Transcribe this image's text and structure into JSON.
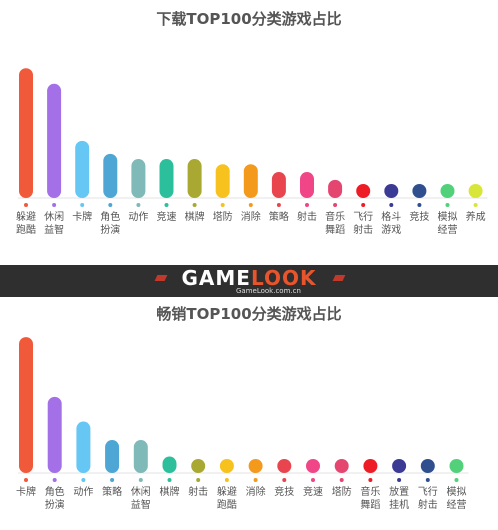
{
  "chart_data": [
    {
      "type": "bar",
      "title": "下载TOP100分类游戏占比",
      "categories": [
        [
          "躲避",
          "跑酷"
        ],
        [
          "休闲",
          "益智"
        ],
        [
          "卡牌"
        ],
        [
          "角色",
          "扮演"
        ],
        [
          "动作"
        ],
        [
          "竞速"
        ],
        [
          "棋牌"
        ],
        [
          "塔防"
        ],
        [
          "消除"
        ],
        [
          "策略"
        ],
        [
          "射击"
        ],
        [
          "音乐",
          "舞蹈"
        ],
        [
          "飞行",
          "射击"
        ],
        [
          "格斗",
          "游戏"
        ],
        [
          "竞技"
        ],
        [
          "模拟",
          "经营"
        ],
        [
          "养成"
        ]
      ],
      "values": [
        25,
        22,
        11,
        8.5,
        7.5,
        7.5,
        7.5,
        6.5,
        6.5,
        5,
        5,
        3.5,
        2.5,
        2.5,
        2.5,
        2.5,
        1
      ],
      "colors": [
        "#f05a3a",
        "#a370e8",
        "#66c7f4",
        "#4ea6d4",
        "#7fb9b8",
        "#2bbf9c",
        "#a8a832",
        "#f7c21e",
        "#f39a1c",
        "#e8454e",
        "#f04687",
        "#e4466f",
        "#ee1c25",
        "#3b3a94",
        "#2f4f8f",
        "#52d07a",
        "#d8e63a"
      ],
      "ylim": [
        0,
        26
      ]
    },
    {
      "type": "bar",
      "title": "畅销TOP100分类游戏占比",
      "categories": [
        [
          "卡牌"
        ],
        [
          "角色",
          "扮演"
        ],
        [
          "动作"
        ],
        [
          "策略"
        ],
        [
          "休闲",
          "益智"
        ],
        [
          "棋牌"
        ],
        [
          "射击"
        ],
        [
          "躲避",
          "跑酷"
        ],
        [
          "消除"
        ],
        [
          "竞技"
        ],
        [
          "竞速"
        ],
        [
          "塔防"
        ],
        [
          "音乐",
          "舞蹈"
        ],
        [
          "放置",
          "挂机"
        ],
        [
          "飞行",
          "射击"
        ],
        [
          "模拟",
          "经营"
        ]
      ],
      "values": [
        33,
        18.5,
        12.5,
        8,
        8,
        4,
        3,
        3,
        3,
        2,
        2,
        2,
        2,
        0.8,
        0.8,
        0.8
      ],
      "colors": [
        "#f05a3a",
        "#a370e8",
        "#66c7f4",
        "#4ea6d4",
        "#7fb9b8",
        "#2bbf9c",
        "#a8a832",
        "#f7c21e",
        "#f39a1c",
        "#e8454e",
        "#f04687",
        "#e4466f",
        "#ee1c25",
        "#3b3a94",
        "#2f4f8f",
        "#52d07a"
      ],
      "ylim": [
        0,
        34
      ]
    }
  ],
  "banner": {
    "logo_part1": "GAME",
    "logo_part2": "LOOK",
    "site": "GameLook.com.cn"
  }
}
